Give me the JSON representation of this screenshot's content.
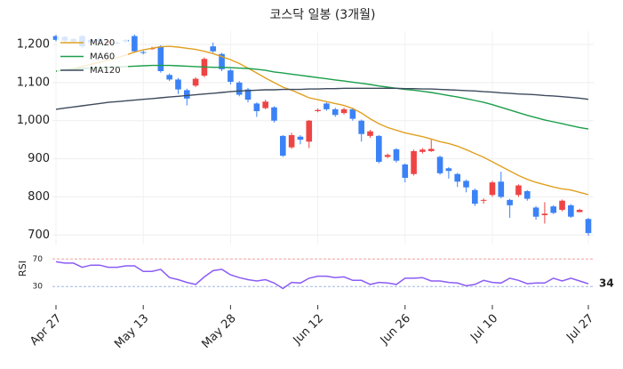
{
  "chart_data": {
    "type": "candlestick",
    "title": "코스닥 일봉 (3개월)",
    "categories": [
      "Apr 27",
      null,
      null,
      null,
      null,
      null,
      null,
      null,
      null,
      null,
      "May 13",
      null,
      null,
      null,
      null,
      null,
      null,
      null,
      null,
      null,
      "May 28",
      null,
      null,
      null,
      null,
      null,
      null,
      null,
      null,
      null,
      "Jun 12",
      null,
      null,
      null,
      null,
      null,
      null,
      null,
      null,
      null,
      "Jun 26",
      null,
      null,
      null,
      null,
      null,
      null,
      null,
      null,
      null,
      "Jul 10",
      null,
      null,
      null,
      null,
      null,
      null,
      null,
      null,
      null,
      null,
      "Jul 27"
    ],
    "open": [
      1222,
      1220,
      1214,
      1222,
      1212,
      1215,
      1204,
      1205,
      1212,
      1222,
      1180,
      1188,
      1195,
      1120,
      1108,
      1080,
      1092,
      1118,
      1195,
      1175,
      1132,
      1100,
      1082,
      1045,
      1033,
      1035,
      960,
      930,
      958,
      945,
      1025,
      1045,
      1030,
      1020,
      1030,
      1000,
      960,
      960,
      905,
      925,
      885,
      860,
      918,
      920,
      905,
      875,
      860,
      842,
      818,
      790,
      805,
      840,
      792,
      805,
      815,
      772,
      752,
      775,
      766,
      778,
      760,
      742
    ],
    "high": [
      1225,
      1222,
      1216,
      1225,
      1214,
      1218,
      1212,
      1208,
      1214,
      1226,
      1184,
      1194,
      1198,
      1124,
      1112,
      1084,
      1114,
      1166,
      1205,
      1178,
      1136,
      1104,
      1086,
      1048,
      1055,
      1038,
      962,
      968,
      962,
      1002,
      1032,
      1048,
      1034,
      1034,
      1034,
      1003,
      976,
      962,
      914,
      928,
      888,
      924,
      928,
      950,
      908,
      878,
      863,
      845,
      822,
      796,
      842,
      866,
      795,
      833,
      818,
      776,
      786,
      778,
      793,
      781,
      769,
      745
    ],
    "low": [
      1208,
      1206,
      1204,
      1190,
      1202,
      1204,
      1200,
      1200,
      1204,
      1178,
      1174,
      1186,
      1126,
      1104,
      1070,
      1040,
      1088,
      1114,
      1178,
      1130,
      1095,
      1064,
      1048,
      1010,
      1030,
      995,
      905,
      926,
      938,
      928,
      1022,
      1026,
      1010,
      1016,
      1000,
      945,
      955,
      888,
      902,
      890,
      838,
      856,
      914,
      918,
      858,
      848,
      826,
      812,
      776,
      782,
      800,
      796,
      745,
      800,
      790,
      740,
      730,
      755,
      762,
      745,
      760,
      698
    ],
    "close": [
      1212,
      1210,
      1208,
      1195,
      1205,
      1208,
      1209,
      1203,
      1208,
      1182,
      1178,
      1190,
      1130,
      1108,
      1082,
      1058,
      1110,
      1162,
      1182,
      1135,
      1102,
      1068,
      1055,
      1025,
      1050,
      1000,
      908,
      962,
      950,
      1000,
      1028,
      1030,
      1015,
      1030,
      1005,
      965,
      972,
      892,
      910,
      895,
      850,
      920,
      924,
      926,
      862,
      868,
      840,
      825,
      782,
      792,
      838,
      800,
      778,
      830,
      795,
      748,
      756,
      758,
      790,
      748,
      766,
      705
    ],
    "up_color": "#ef4444",
    "down_color": "#3b82f6",
    "series": [
      {
        "name": "MA20",
        "color": "#e0a020",
        "values": [
          1130,
          1133,
          1137,
          1142,
          1148,
          1153,
          1159,
          1165,
          1172,
          1180,
          1186,
          1190,
          1194,
          1195,
          1193,
          1190,
          1187,
          1182,
          1176,
          1168,
          1160,
          1150,
          1138,
          1125,
          1112,
          1100,
          1088,
          1080,
          1070,
          1060,
          1055,
          1050,
          1045,
          1040,
          1032,
          1020,
          1005,
          992,
          982,
          975,
          968,
          963,
          958,
          952,
          945,
          940,
          933,
          924,
          914,
          904,
          892,
          880,
          868,
          856,
          846,
          838,
          832,
          826,
          821,
          818,
          812,
          806
        ]
      },
      {
        "name": "MA60",
        "color": "#1a9e4a",
        "values": [
          1130,
          1133,
          1135,
          1137,
          1138,
          1139,
          1140,
          1141,
          1142,
          1143,
          1144,
          1145,
          1145,
          1145,
          1144,
          1143,
          1142,
          1141,
          1140,
          1140,
          1139,
          1138,
          1137,
          1135,
          1132,
          1128,
          1125,
          1122,
          1119,
          1116,
          1113,
          1110,
          1107,
          1104,
          1101,
          1098,
          1095,
          1091,
          1088,
          1085,
          1082,
          1080,
          1077,
          1074,
          1070,
          1066,
          1062,
          1058,
          1053,
          1048,
          1042,
          1035,
          1028,
          1021,
          1014,
          1008,
          1002,
          997,
          992,
          987,
          982,
          978
        ]
      },
      {
        "name": "MA120",
        "color": "#3d4a5c",
        "values": [
          1030,
          1033,
          1036,
          1039,
          1042,
          1045,
          1048,
          1050,
          1052,
          1054,
          1056,
          1058,
          1060,
          1062,
          1064,
          1066,
          1068,
          1070,
          1072,
          1074,
          1076,
          1078,
          1079,
          1080,
          1081,
          1081,
          1082,
          1082,
          1082,
          1083,
          1083,
          1084,
          1084,
          1085,
          1085,
          1085,
          1085,
          1085,
          1085,
          1085,
          1084,
          1084,
          1083,
          1083,
          1082,
          1081,
          1080,
          1079,
          1078,
          1076,
          1075,
          1073,
          1072,
          1070,
          1069,
          1068,
          1066,
          1065,
          1063,
          1061,
          1059,
          1056
        ]
      }
    ],
    "ylim": [
      675,
      1235
    ],
    "yticks": [
      700,
      800,
      900,
      {
        "value": 1000,
        "label": "1,000"
      },
      {
        "value": 1100,
        "label": "1,100"
      },
      {
        "value": 1200,
        "label": "1,200"
      }
    ],
    "grid": true,
    "legend": "upper left",
    "rsi": {
      "label": "RSI",
      "color": "#8b5cf6",
      "values": [
        66,
        64,
        64,
        58,
        61,
        61,
        58,
        58,
        60,
        60,
        52,
        52,
        55,
        43,
        40,
        36,
        33,
        44,
        53,
        55,
        47,
        43,
        40,
        38,
        40,
        35,
        27,
        36,
        35,
        42,
        45,
        45,
        43,
        44,
        39,
        39,
        33,
        36,
        35,
        33,
        42,
        42,
        43,
        38,
        38,
        36,
        35,
        31,
        33,
        39,
        36,
        35,
        42,
        39,
        34,
        35,
        35,
        42,
        38,
        42,
        38,
        34
      ],
      "ylim": [
        7,
        82
      ],
      "yticks": [
        70,
        30
      ],
      "ref_colors": [
        "#f0a0a0",
        "#a0b8e0"
      ]
    }
  }
}
